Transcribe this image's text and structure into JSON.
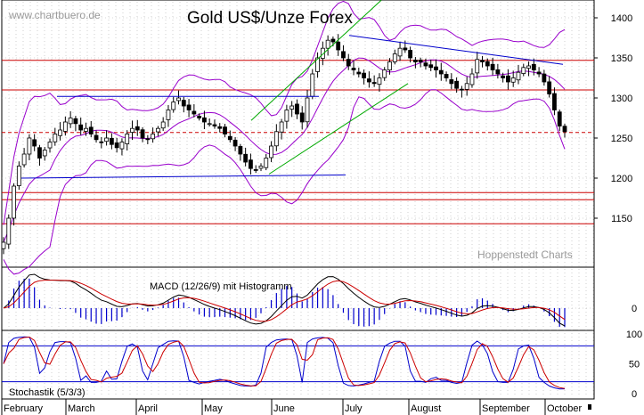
{
  "header": {
    "watermark": "www.chartbuero.de",
    "title": "Gold US$/Unze Forex",
    "credit": "Hoppenstedt Charts"
  },
  "colors": {
    "price": "#000000",
    "bollinger": "#9900cc",
    "support_resistance": "#cc0000",
    "trend_lines": "#0000cc",
    "channel": "#00aa00",
    "macd_line": "#000000",
    "signal_line": "#cc0000",
    "histogram": "#0000cc",
    "stoch_k": "#0000cc",
    "stoch_d": "#cc0000",
    "grid": "#b0b0b0"
  },
  "chart_data": [
    {
      "type": "candlestick",
      "panel": "price",
      "title": "Gold US$/Unze Forex",
      "ylim": [
        1100,
        1420
      ],
      "y_ticks": [
        1150,
        1200,
        1250,
        1300,
        1350,
        1400
      ],
      "y_tick_labels": [
        "1150",
        "1200",
        "1250",
        "1300",
        "1350",
        "1400"
      ],
      "x_month_labels": [
        "February",
        "March",
        "April",
        "May",
        "June",
        "July",
        "August",
        "September",
        "October"
      ],
      "grid": true,
      "close_series": [
        1120,
        1150,
        1190,
        1215,
        1230,
        1250,
        1240,
        1225,
        1235,
        1245,
        1255,
        1260,
        1270,
        1275,
        1268,
        1260,
        1262,
        1255,
        1248,
        1245,
        1250,
        1242,
        1238,
        1245,
        1255,
        1262,
        1260,
        1250,
        1248,
        1255,
        1262,
        1270,
        1285,
        1295,
        1300,
        1290,
        1285,
        1280,
        1275,
        1270,
        1268,
        1265,
        1262,
        1255,
        1248,
        1240,
        1230,
        1220,
        1212,
        1210,
        1215,
        1225,
        1240,
        1258,
        1270,
        1285,
        1290,
        1280,
        1270,
        1300,
        1330,
        1350,
        1362,
        1372,
        1370,
        1360,
        1350,
        1340,
        1335,
        1330,
        1325,
        1320,
        1318,
        1325,
        1335,
        1345,
        1355,
        1362,
        1360,
        1350,
        1345,
        1345,
        1340,
        1338,
        1335,
        1330,
        1325,
        1318,
        1312,
        1310,
        1318,
        1330,
        1348,
        1345,
        1340,
        1335,
        1330,
        1325,
        1320,
        1325,
        1332,
        1338,
        1340,
        1335,
        1330,
        1320,
        1305,
        1285,
        1265,
        1258
      ],
      "horizontal_levels_red": [
        1347,
        1310,
        1182,
        1173,
        1143
      ],
      "dashed_level_red": 1257,
      "blue_support_line_1": 1302,
      "blue_support_line_2": [
        1200,
        1204
      ],
      "blue_resistance_from_to": [
        1378,
        1342
      ],
      "green_channel_upper": [
        1272,
        1422
      ],
      "green_channel_lower": [
        1205,
        1318
      ],
      "bollinger_bands": [
        "upper",
        "middle",
        "lower"
      ]
    },
    {
      "type": "line",
      "panel": "macd",
      "title": "MACD (12/26/9) mit Histogramm",
      "y_ticks": [
        0
      ],
      "y_tick_labels": [
        "0"
      ],
      "series": [
        {
          "name": "MACD"
        },
        {
          "name": "Signal"
        },
        {
          "name": "Histogramm"
        }
      ]
    },
    {
      "type": "line",
      "panel": "stochastic",
      "title": "Stochastik (5/3/3)",
      "ylim": [
        0,
        100
      ],
      "y_ticks": [
        0,
        50,
        100
      ],
      "y_tick_labels": [
        "0",
        "50",
        "100"
      ],
      "reference_levels": [
        80,
        20
      ]
    }
  ]
}
